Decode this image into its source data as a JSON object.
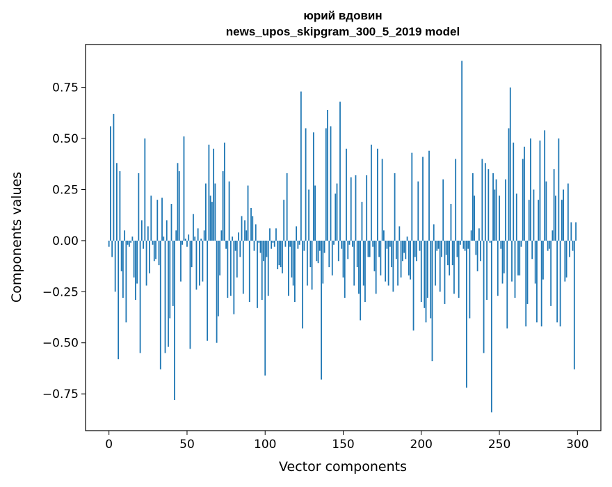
{
  "chart_data": {
    "type": "bar",
    "title": "юрий вдовин",
    "subtitle": "news_upos_skipgram_300_5_2019 model",
    "xlabel": "Vector components",
    "ylabel": "Components values",
    "xlim": [
      -15,
      315
    ],
    "ylim": [
      -0.93,
      0.96
    ],
    "xticks": [
      0,
      50,
      100,
      150,
      200,
      250,
      300
    ],
    "xtick_labels": [
      "0",
      "50",
      "100",
      "150",
      "200",
      "250",
      "300"
    ],
    "yticks": [
      -0.75,
      -0.5,
      -0.25,
      0.0,
      0.25,
      0.5,
      0.75
    ],
    "ytick_labels": [
      "−0.75",
      "−0.50",
      "−0.25",
      "0.00",
      "0.25",
      "0.50",
      "0.75"
    ],
    "grid": false,
    "bar_color": "#1f77b4",
    "values": [
      -0.03,
      0.56,
      -0.08,
      0.62,
      -0.25,
      0.38,
      -0.58,
      0.34,
      -0.15,
      -0.28,
      0.05,
      -0.4,
      -0.02,
      -0.03,
      -0.01,
      0.02,
      -0.18,
      -0.29,
      -0.21,
      0.33,
      -0.55,
      0.1,
      -0.04,
      0.5,
      -0.22,
      0.07,
      -0.16,
      0.22,
      -0.02,
      -0.1,
      -0.09,
      0.2,
      -0.12,
      -0.63,
      0.21,
      0.02,
      -0.55,
      0.1,
      -0.52,
      -0.38,
      0.18,
      -0.32,
      -0.78,
      0.05,
      0.38,
      0.34,
      -0.2,
      -0.02,
      0.51,
      0.01,
      -0.03,
      0.03,
      -0.53,
      -0.13,
      0.13,
      0.02,
      -0.24,
      0.06,
      -0.22,
      0.01,
      -0.2,
      0.05,
      0.28,
      -0.49,
      0.47,
      0.22,
      0.19,
      0.45,
      0.28,
      -0.5,
      -0.37,
      -0.17,
      0.05,
      0.34,
      0.48,
      -0.04,
      -0.28,
      0.29,
      -0.27,
      0.02,
      -0.36,
      -0.05,
      -0.18,
      0.04,
      -0.08,
      0.12,
      -0.26,
      0.1,
      0.05,
      0.27,
      -0.3,
      0.16,
      0.12,
      -0.05,
      0.08,
      -0.33,
      -0.01,
      -0.06,
      -0.29,
      -0.1,
      -0.66,
      -0.08,
      -0.27,
      0.06,
      -0.04,
      -0.01,
      -0.03,
      0.06,
      -0.14,
      -0.12,
      -0.13,
      -0.16,
      0.2,
      -0.03,
      0.33,
      -0.27,
      -0.03,
      -0.18,
      -0.22,
      -0.3,
      0.07,
      -0.04,
      -0.02,
      0.73,
      -0.43,
      -0.05,
      0.55,
      -0.22,
      0.25,
      -0.13,
      -0.24,
      0.53,
      0.27,
      -0.1,
      -0.11,
      -0.05,
      -0.68,
      -0.21,
      -0.06,
      0.55,
      0.64,
      -0.13,
      0.56,
      -0.17,
      -0.02,
      0.23,
      0.28,
      -0.1,
      0.68,
      -0.04,
      -0.18,
      -0.28,
      0.45,
      -0.09,
      -0.02,
      0.31,
      -0.03,
      -0.22,
      0.32,
      -0.13,
      -0.26,
      -0.39,
      0.19,
      -0.22,
      -0.3,
      0.32,
      -0.08,
      -0.08,
      0.47,
      -0.03,
      -0.15,
      -0.26,
      0.45,
      -0.08,
      -0.17,
      0.4,
      0.05,
      -0.2,
      -0.04,
      -0.22,
      -0.03,
      -0.13,
      -0.25,
      0.33,
      -0.09,
      -0.22,
      0.07,
      -0.18,
      -0.1,
      -0.06,
      -0.09,
      0.02,
      -0.17,
      -0.19,
      0.43,
      -0.44,
      -0.08,
      -0.1,
      0.29,
      -0.05,
      -0.3,
      0.41,
      -0.33,
      -0.4,
      -0.28,
      0.44,
      -0.38,
      -0.59,
      0.08,
      -0.22,
      -0.05,
      -0.04,
      -0.25,
      -0.08,
      0.3,
      -0.31,
      -0.07,
      -0.12,
      -0.17,
      0.18,
      -0.12,
      -0.26,
      0.4,
      -0.08,
      -0.28,
      -0.02,
      0.88,
      -0.04,
      -0.05,
      -0.72,
      -0.04,
      -0.38,
      0.05,
      0.33,
      0.22,
      -0.07,
      -0.15,
      0.06,
      -0.1,
      0.4,
      -0.55,
      0.38,
      -0.29,
      0.35,
      -0.01,
      -0.84,
      0.33,
      0.25,
      0.3,
      -0.27,
      0.22,
      -0.04,
      -0.21,
      -0.16,
      0.3,
      -0.43,
      0.55,
      0.75,
      -0.2,
      0.48,
      -0.28,
      0.23,
      -0.17,
      -0.17,
      -0.03,
      0.4,
      0.46,
      -0.42,
      -0.31,
      0.2,
      0.5,
      -0.09,
      0.25,
      -0.21,
      -0.4,
      0.2,
      0.49,
      -0.42,
      -0.19,
      0.54,
      0.29,
      -0.05,
      -0.04,
      -0.32,
      0.05,
      0.35,
      0.22,
      -0.4,
      0.5,
      -0.42,
      0.2,
      0.25,
      -0.2,
      -0.18,
      0.28,
      -0.08,
      0.09,
      -0.05,
      -0.63,
      0.09
    ]
  }
}
